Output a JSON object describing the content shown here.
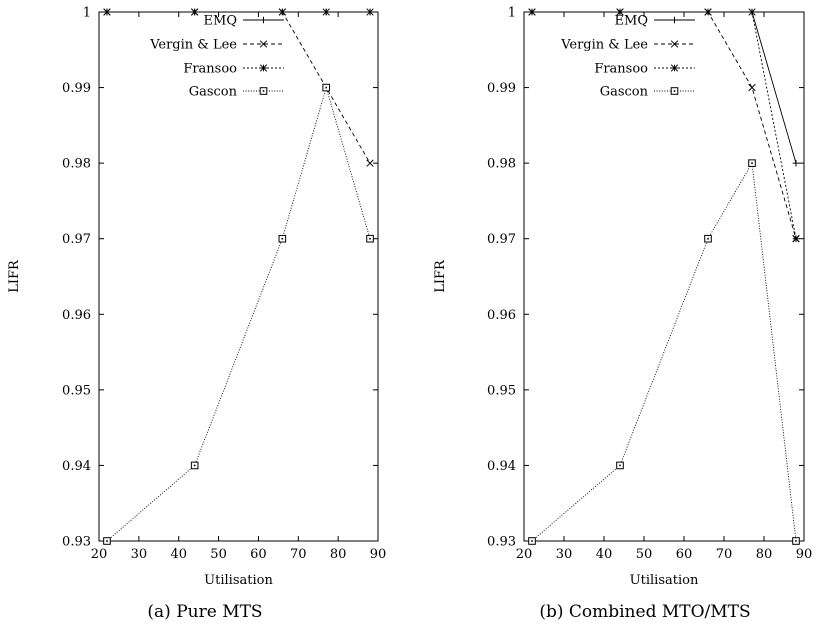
{
  "chart_data": [
    {
      "type": "line",
      "caption": "(a) Pure MTS",
      "xlabel": "Utilisation",
      "ylabel": "LIFR",
      "xlim": [
        20,
        90
      ],
      "ylim": [
        0.93,
        1
      ],
      "xticks": [
        "20",
        "30",
        "40",
        "50",
        "60",
        "70",
        "80",
        "90"
      ],
      "yticks": [
        "0.93",
        "0.94",
        "0.95",
        "0.96",
        "0.97",
        "0.98",
        "0.99",
        "1"
      ],
      "legend_position": "top-right",
      "grid": false,
      "series": [
        {
          "name": "EMQ",
          "marker": "plus",
          "dash": "solid",
          "x": [
            22,
            44,
            66,
            77,
            88
          ],
          "y": [
            1,
            1,
            1,
            1,
            1
          ]
        },
        {
          "name": "Vergin & Lee",
          "marker": "cross",
          "dash": "dashed",
          "x": [
            22,
            44,
            66,
            77,
            88
          ],
          "y": [
            1,
            1,
            1,
            0.99,
            0.98
          ]
        },
        {
          "name": "Fransoo",
          "marker": "star",
          "dash": "dotted",
          "x": [
            22,
            44,
            66,
            77,
            88
          ],
          "y": [
            1,
            1,
            1,
            1,
            1
          ]
        },
        {
          "name": "Gascon",
          "marker": "square",
          "dash": "fine-dotted",
          "x": [
            22,
            44,
            66,
            77,
            88
          ],
          "y": [
            0.93,
            0.94,
            0.97,
            0.99,
            0.97
          ]
        }
      ]
    },
    {
      "type": "line",
      "caption": "(b) Combined MTO/MTS",
      "xlabel": "Utilisation",
      "ylabel": "LIFR",
      "xlim": [
        20,
        90
      ],
      "ylim": [
        0.93,
        1
      ],
      "xticks": [
        "20",
        "30",
        "40",
        "50",
        "60",
        "70",
        "80",
        "90"
      ],
      "yticks": [
        "0.93",
        "0.94",
        "0.95",
        "0.96",
        "0.97",
        "0.98",
        "0.99",
        "1"
      ],
      "legend_position": "top-right",
      "grid": false,
      "series": [
        {
          "name": "EMQ",
          "marker": "plus",
          "dash": "solid",
          "x": [
            22,
            44,
            66,
            77,
            88
          ],
          "y": [
            1,
            1,
            1,
            1,
            0.98
          ]
        },
        {
          "name": "Vergin & Lee",
          "marker": "cross",
          "dash": "dashed",
          "x": [
            22,
            44,
            66,
            77,
            88
          ],
          "y": [
            1,
            1,
            1,
            0.99,
            0.97
          ]
        },
        {
          "name": "Fransoo",
          "marker": "star",
          "dash": "dotted",
          "x": [
            22,
            44,
            66,
            77,
            88
          ],
          "y": [
            1,
            1,
            1,
            1,
            0.97
          ]
        },
        {
          "name": "Gascon",
          "marker": "square",
          "dash": "fine-dotted",
          "x": [
            22,
            44,
            66,
            77,
            88
          ],
          "y": [
            0.93,
            0.94,
            0.97,
            0.98,
            0.93
          ]
        }
      ]
    }
  ]
}
